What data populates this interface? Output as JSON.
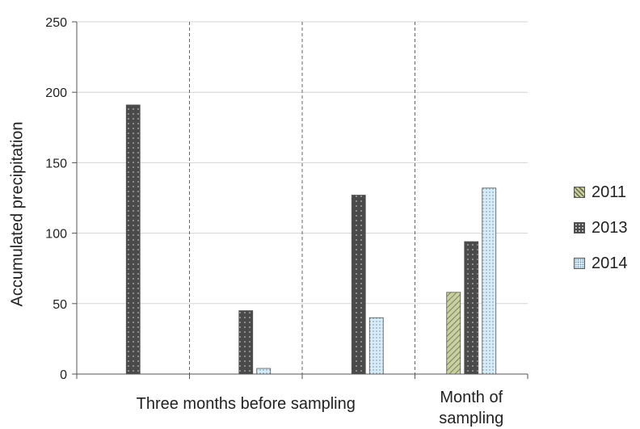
{
  "chart_data": {
    "type": "bar",
    "ylabel": "Accumulated precipitation",
    "ylim": [
      0,
      250
    ],
    "yticks": [
      "0",
      "50",
      "100",
      "150",
      "200",
      "250"
    ],
    "group_labels": [
      {
        "text": "Three months before sampling",
        "span": [
          0,
          2
        ]
      },
      {
        "text": "Month of sampling",
        "span": [
          3,
          3
        ]
      }
    ],
    "categories": [
      "",
      "",
      "",
      ""
    ],
    "series": [
      {
        "name": "2011",
        "color": "#c8d0a0",
        "pattern": "diagonal-hatch",
        "values": [
          null,
          null,
          null,
          58
        ]
      },
      {
        "name": "2013",
        "color": "#4a4a4a",
        "pattern": "dots",
        "values": [
          191,
          45,
          127,
          94
        ]
      },
      {
        "name": "2014",
        "color": "#d8ecf8",
        "pattern": "dots",
        "values": [
          null,
          4,
          40,
          132
        ]
      }
    ],
    "grid": {
      "horizontal": true,
      "vertical_dashed_separators": true
    },
    "legend": "right"
  }
}
